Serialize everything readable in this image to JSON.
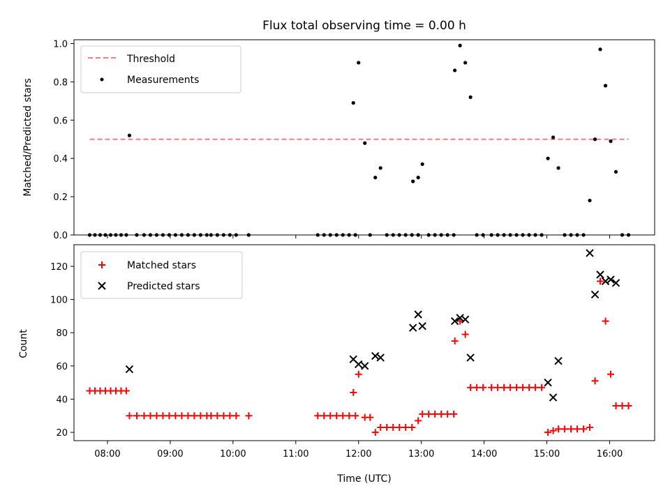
{
  "chart_data": [
    {
      "type": "scatter",
      "title": "Flux total observing time = 0.00 h",
      "xlabel": "",
      "ylabel": "Matched/Predicted stars",
      "xlim": [
        "07:28",
        "16:43"
      ],
      "ylim": [
        0.0,
        1.02
      ],
      "yticks": [
        "0.0",
        "0.2",
        "0.4",
        "0.6",
        "0.8",
        "1.0"
      ],
      "legend": "upper-left",
      "threshold": {
        "name": "Threshold",
        "value": 0.5,
        "x_range": [
          "07:43",
          "16:18"
        ],
        "style": "dashed",
        "color": "#f08080"
      },
      "series": [
        {
          "name": "Measurements",
          "color": "#000000",
          "marker": "dot",
          "points": [
            [
              "07:43",
              0
            ],
            [
              "07:48",
              0
            ],
            [
              "07:53",
              0
            ],
            [
              "07:58",
              0
            ],
            [
              "08:03",
              0
            ],
            [
              "08:08",
              0
            ],
            [
              "08:13",
              0
            ],
            [
              "08:18",
              0
            ],
            [
              "08:21",
              0.52
            ],
            [
              "08:28",
              0
            ],
            [
              "08:35",
              0
            ],
            [
              "08:41",
              0
            ],
            [
              "08:47",
              0
            ],
            [
              "08:53",
              0
            ],
            [
              "08:59",
              0
            ],
            [
              "09:05",
              0
            ],
            [
              "09:11",
              0
            ],
            [
              "09:17",
              0
            ],
            [
              "09:23",
              0
            ],
            [
              "09:29",
              0
            ],
            [
              "09:35",
              0
            ],
            [
              "09:39",
              0
            ],
            [
              "09:45",
              0
            ],
            [
              "09:51",
              0
            ],
            [
              "09:57",
              0
            ],
            [
              "10:03",
              0
            ],
            [
              "10:15",
              0
            ],
            [
              "11:21",
              0
            ],
            [
              "11:27",
              0
            ],
            [
              "11:33",
              0
            ],
            [
              "11:39",
              0
            ],
            [
              "11:45",
              0
            ],
            [
              "11:51",
              0
            ],
            [
              "11:57",
              0
            ],
            [
              "11:55",
              0.69
            ],
            [
              "12:00",
              0.9
            ],
            [
              "12:06",
              0.48
            ],
            [
              "12:11",
              0
            ],
            [
              "12:16",
              0.3
            ],
            [
              "12:21",
              0.35
            ],
            [
              "12:27",
              0
            ],
            [
              "12:33",
              0
            ],
            [
              "12:39",
              0
            ],
            [
              "12:45",
              0
            ],
            [
              "12:51",
              0
            ],
            [
              "12:57",
              0
            ],
            [
              "12:52",
              0.28
            ],
            [
              "12:57",
              0.3
            ],
            [
              "13:01",
              0.37
            ],
            [
              "13:07",
              0
            ],
            [
              "13:13",
              0
            ],
            [
              "13:19",
              0
            ],
            [
              "13:25",
              0
            ],
            [
              "13:31",
              0
            ],
            [
              "13:32",
              0.86
            ],
            [
              "13:37",
              0.99
            ],
            [
              "13:42",
              0.9
            ],
            [
              "13:47",
              0.72
            ],
            [
              "13:53",
              0
            ],
            [
              "13:59",
              0
            ],
            [
              "14:07",
              0
            ],
            [
              "14:13",
              0
            ],
            [
              "14:19",
              0
            ],
            [
              "14:25",
              0
            ],
            [
              "14:31",
              0
            ],
            [
              "14:37",
              0
            ],
            [
              "14:43",
              0
            ],
            [
              "14:49",
              0
            ],
            [
              "14:55",
              0
            ],
            [
              "15:01",
              0.4
            ],
            [
              "15:06",
              0.51
            ],
            [
              "15:11",
              0.35
            ],
            [
              "15:17",
              0
            ],
            [
              "15:23",
              0
            ],
            [
              "15:29",
              0
            ],
            [
              "15:35",
              0
            ],
            [
              "15:41",
              0.18
            ],
            [
              "15:46",
              0.5
            ],
            [
              "15:51",
              0.97
            ],
            [
              "15:56",
              0.78
            ],
            [
              "16:01",
              0.49
            ],
            [
              "16:06",
              0.33
            ],
            [
              "16:12",
              0
            ],
            [
              "16:18",
              0
            ]
          ]
        }
      ]
    },
    {
      "type": "scatter",
      "title": "",
      "xlabel": "Time (UTC)",
      "ylabel": "Count",
      "xlim": [
        "07:28",
        "16:43"
      ],
      "ylim": [
        15,
        133
      ],
      "yticks": [
        "20",
        "40",
        "60",
        "80",
        "100",
        "120"
      ],
      "xticks": [
        "08:00",
        "09:00",
        "10:00",
        "11:00",
        "12:00",
        "13:00",
        "14:00",
        "15:00",
        "16:00"
      ],
      "legend": "upper-left",
      "series": [
        {
          "name": "Matched stars",
          "color": "#ff0000",
          "marker": "plus",
          "points": [
            [
              "07:43",
              45
            ],
            [
              "07:48",
              45
            ],
            [
              "07:53",
              45
            ],
            [
              "07:58",
              45
            ],
            [
              "08:03",
              45
            ],
            [
              "08:08",
              45
            ],
            [
              "08:13",
              45
            ],
            [
              "08:18",
              45
            ],
            [
              "08:21",
              30
            ],
            [
              "08:28",
              30
            ],
            [
              "08:35",
              30
            ],
            [
              "08:41",
              30
            ],
            [
              "08:47",
              30
            ],
            [
              "08:53",
              30
            ],
            [
              "08:59",
              30
            ],
            [
              "09:05",
              30
            ],
            [
              "09:11",
              30
            ],
            [
              "09:17",
              30
            ],
            [
              "09:23",
              30
            ],
            [
              "09:29",
              30
            ],
            [
              "09:35",
              30
            ],
            [
              "09:39",
              30
            ],
            [
              "09:45",
              30
            ],
            [
              "09:51",
              30
            ],
            [
              "09:57",
              30
            ],
            [
              "10:03",
              30
            ],
            [
              "10:15",
              30
            ],
            [
              "11:21",
              30
            ],
            [
              "11:27",
              30
            ],
            [
              "11:33",
              30
            ],
            [
              "11:39",
              30
            ],
            [
              "11:45",
              30
            ],
            [
              "11:51",
              30
            ],
            [
              "11:57",
              30
            ],
            [
              "11:55",
              44
            ],
            [
              "12:00",
              55
            ],
            [
              "12:06",
              29
            ],
            [
              "12:11",
              29
            ],
            [
              "12:16",
              20
            ],
            [
              "12:21",
              23
            ],
            [
              "12:27",
              23
            ],
            [
              "12:33",
              23
            ],
            [
              "12:39",
              23
            ],
            [
              "12:45",
              23
            ],
            [
              "12:51",
              23
            ],
            [
              "12:57",
              27
            ],
            [
              "13:01",
              31
            ],
            [
              "13:07",
              31
            ],
            [
              "13:13",
              31
            ],
            [
              "13:19",
              31
            ],
            [
              "13:25",
              31
            ],
            [
              "13:31",
              31
            ],
            [
              "13:32",
              75
            ],
            [
              "13:37",
              87
            ],
            [
              "13:42",
              79
            ],
            [
              "13:47",
              47
            ],
            [
              "13:53",
              47
            ],
            [
              "13:59",
              47
            ],
            [
              "14:07",
              47
            ],
            [
              "14:13",
              47
            ],
            [
              "14:19",
              47
            ],
            [
              "14:25",
              47
            ],
            [
              "14:31",
              47
            ],
            [
              "14:37",
              47
            ],
            [
              "14:43",
              47
            ],
            [
              "14:49",
              47
            ],
            [
              "14:55",
              47
            ],
            [
              "15:01",
              20
            ],
            [
              "15:06",
              21
            ],
            [
              "15:11",
              22
            ],
            [
              "15:17",
              22
            ],
            [
              "15:23",
              22
            ],
            [
              "15:29",
              22
            ],
            [
              "15:35",
              22
            ],
            [
              "15:41",
              23
            ],
            [
              "15:46",
              51
            ],
            [
              "15:51",
              111
            ],
            [
              "15:56",
              87
            ],
            [
              "16:01",
              55
            ],
            [
              "16:06",
              36
            ],
            [
              "16:12",
              36
            ],
            [
              "16:18",
              36
            ]
          ]
        },
        {
          "name": "Predicted stars",
          "color": "#000000",
          "marker": "x",
          "points": [
            [
              "08:21",
              58
            ],
            [
              "11:55",
              64
            ],
            [
              "12:00",
              61
            ],
            [
              "12:06",
              60
            ],
            [
              "12:16",
              66
            ],
            [
              "12:21",
              65
            ],
            [
              "12:52",
              83
            ],
            [
              "12:57",
              91
            ],
            [
              "13:01",
              84
            ],
            [
              "13:32",
              87
            ],
            [
              "13:37",
              89
            ],
            [
              "13:42",
              88
            ],
            [
              "13:47",
              65
            ],
            [
              "15:01",
              50
            ],
            [
              "15:06",
              41
            ],
            [
              "15:11",
              63
            ],
            [
              "15:41",
              128
            ],
            [
              "15:46",
              103
            ],
            [
              "15:51",
              115
            ],
            [
              "15:56",
              111
            ],
            [
              "16:01",
              112
            ],
            [
              "16:06",
              110
            ]
          ]
        }
      ]
    }
  ]
}
